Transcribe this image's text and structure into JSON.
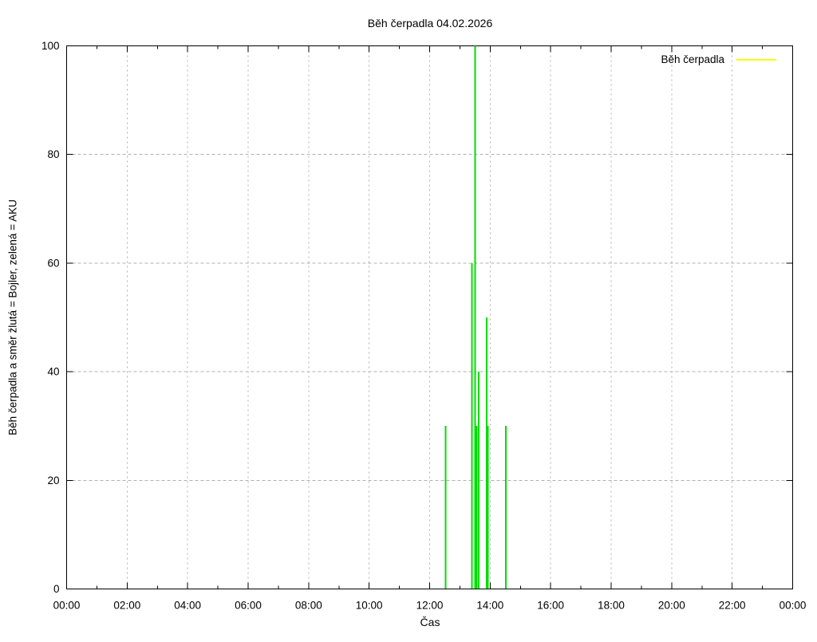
{
  "chart_data": {
    "type": "bar",
    "style": "impulses",
    "title": "Běh čerpadla 04.02.2026",
    "xlabel": "Čas",
    "ylabel": "Běh čerpadla a směr žlutá = Bojler, zelená = AKU",
    "x_range_hours": [
      0,
      24
    ],
    "ylim": [
      0,
      100
    ],
    "grid": true,
    "x_ticks_hours": [
      0,
      2,
      4,
      6,
      8,
      10,
      12,
      14,
      16,
      18,
      20,
      22,
      24
    ],
    "x_tick_labels": [
      "00:00",
      "02:00",
      "04:00",
      "06:00",
      "08:00",
      "10:00",
      "12:00",
      "14:00",
      "16:00",
      "18:00",
      "20:00",
      "22:00",
      "00:00"
    ],
    "x_minor_ticks_hours": [
      1,
      3,
      5,
      7,
      9,
      11,
      13,
      15,
      17,
      19,
      21,
      23
    ],
    "y_ticks": [
      0,
      20,
      40,
      60,
      80,
      100
    ],
    "y_tick_labels": [
      "0",
      "20",
      "40",
      "60",
      "80",
      "100"
    ],
    "legend": {
      "label": "Běh čerpadla",
      "color": "#ffff00",
      "position": "top-right"
    },
    "colors": {
      "grid": "#b0b0b0",
      "axis": "#000000",
      "background": "#ffffff",
      "green_aku": "#00dd00",
      "yellow_bojler": "#ffff00"
    },
    "series": [
      {
        "name": "Běh čerpadla (zelená = AKU)",
        "color": "#00dd00",
        "points": [
          {
            "time": "12:32",
            "hours": 12.53,
            "value": 30
          },
          {
            "time": "13:24",
            "hours": 13.4,
            "value": 60
          },
          {
            "time": "13:30",
            "hours": 13.5,
            "value": 100
          },
          {
            "time": "13:33",
            "hours": 13.55,
            "value": 30
          },
          {
            "time": "13:37",
            "hours": 13.62,
            "value": 40
          },
          {
            "time": "13:53",
            "hours": 13.89,
            "value": 50
          },
          {
            "time": "13:56",
            "hours": 13.93,
            "value": 30
          },
          {
            "time": "14:31",
            "hours": 14.52,
            "value": 30
          }
        ]
      }
    ]
  }
}
